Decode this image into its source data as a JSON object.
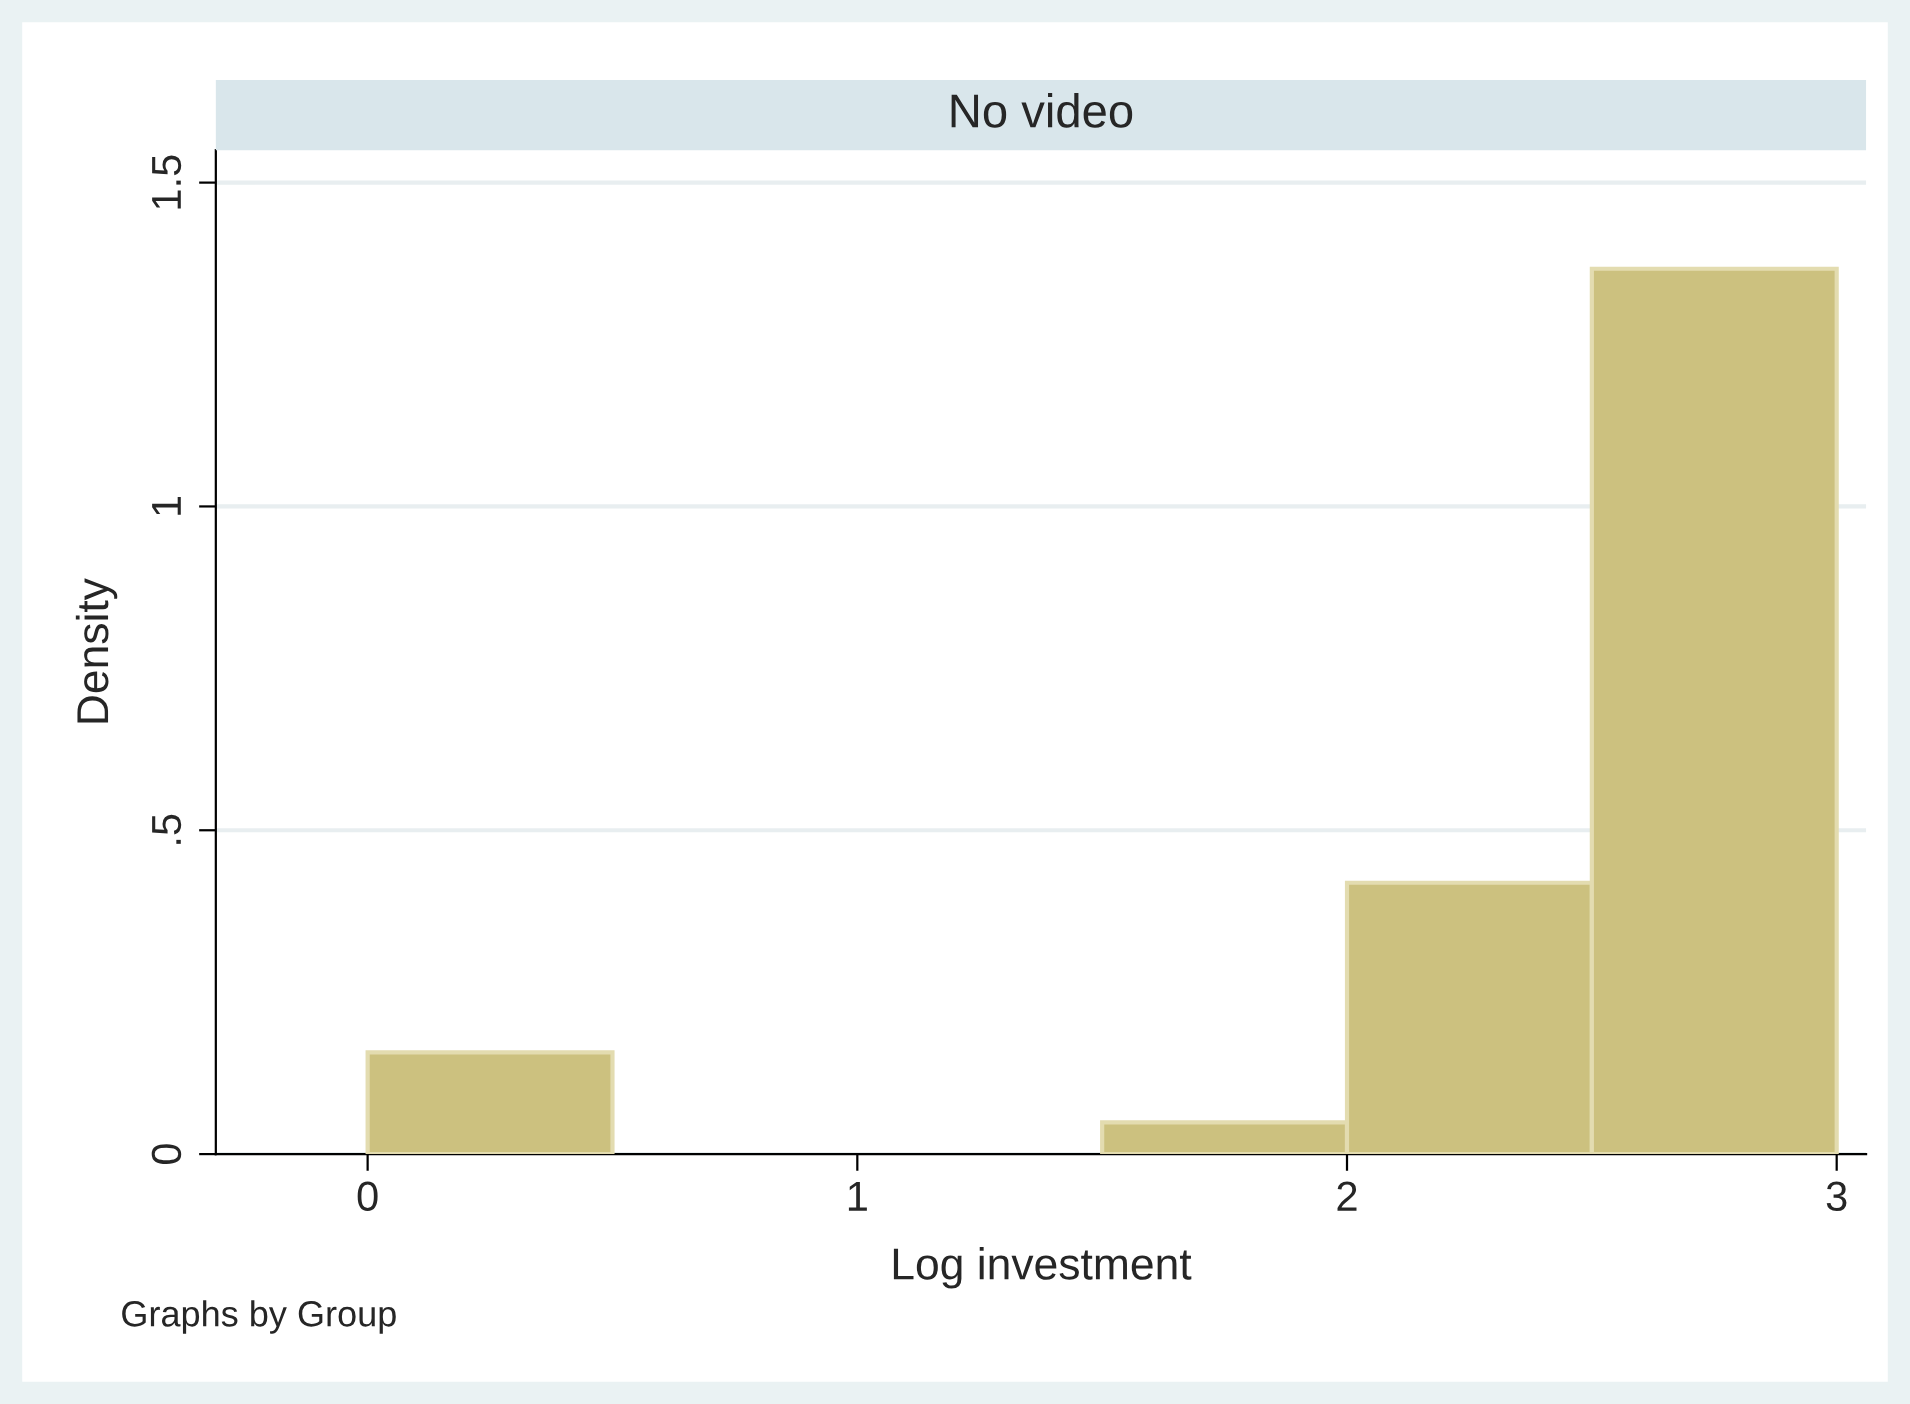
{
  "chart_data": {
    "type": "histogram",
    "title": "No video",
    "xlabel": "Log investment",
    "ylabel": "Density",
    "bins": [
      0,
      0.5,
      1,
      1.5,
      2,
      2.5,
      3
    ],
    "values": [
      0.157,
      0,
      0,
      0.049,
      0.419,
      1.367
    ],
    "color": "#ccc17f",
    "xlim": [
      -0.31,
      3.06
    ],
    "xticks": [
      0,
      1,
      2,
      3
    ],
    "ylim": [
      0,
      1.55
    ],
    "yticks": [
      0,
      {
        "value": 0.5,
        "label": ".5"
      },
      1,
      1.5
    ],
    "grid": "y",
    "annotations": [
      "Graphs by Group"
    ]
  }
}
